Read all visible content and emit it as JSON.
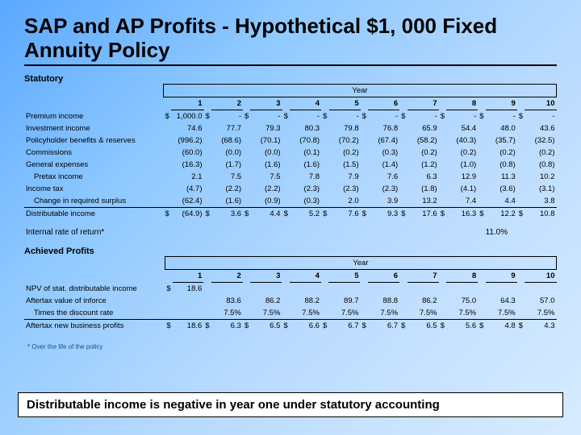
{
  "title": "SAP and AP Profits - Hypothetical $1, 000 Fixed Annuity Policy",
  "statutory": {
    "label": "Statutory",
    "year_label": "Year",
    "cols": [
      "1",
      "2",
      "3",
      "4",
      "5",
      "6",
      "7",
      "8",
      "9",
      "10"
    ],
    "rows": [
      {
        "label": "Premium income",
        "indent": false,
        "d": true,
        "v": [
          "1,000.0",
          "-",
          "-",
          "-",
          "-",
          "-",
          "-",
          "-",
          "-",
          "-"
        ]
      },
      {
        "label": "Investment income",
        "indent": false,
        "d": false,
        "v": [
          "74.6",
          "77.7",
          "79.3",
          "80.3",
          "79.8",
          "76.8",
          "65.9",
          "54.4",
          "48.0",
          "43.6"
        ]
      },
      {
        "label": "Policyholder benefits & reserves",
        "indent": false,
        "d": false,
        "v": [
          "(996.2)",
          "(68.6)",
          "(70.1)",
          "(70.8)",
          "(70.2)",
          "(67.4)",
          "(58.2)",
          "(40.3)",
          "(35.7)",
          "(32.5)"
        ]
      },
      {
        "label": "Commissions",
        "indent": false,
        "d": false,
        "v": [
          "(60.0)",
          "(0.0)",
          "(0.0)",
          "(0.1)",
          "(0.2)",
          "(0.3)",
          "(0.2)",
          "(0.2)",
          "(0.2)",
          "(0.2)"
        ]
      },
      {
        "label": "General expenses",
        "indent": false,
        "d": false,
        "v": [
          "(16.3)",
          "(1.7)",
          "(1.6)",
          "(1.6)",
          "(1.5)",
          "(1.4)",
          "(1.2)",
          "(1.0)",
          "(0.8)",
          "(0.8)"
        ]
      },
      {
        "label": "Pretax income",
        "indent": true,
        "d": false,
        "v": [
          "2.1",
          "7.5",
          "7.5",
          "7.8",
          "7.9",
          "7.6",
          "6.3",
          "12.9",
          "11.3",
          "10.2"
        ]
      },
      {
        "label": "Income tax",
        "indent": false,
        "d": false,
        "v": [
          "(4.7)",
          "(2.2)",
          "(2.2)",
          "(2.3)",
          "(2.3)",
          "(2.3)",
          "(1.8)",
          "(4.1)",
          "(3.6)",
          "(3.1)"
        ]
      },
      {
        "label": "Change in required surplus",
        "indent": true,
        "d": false,
        "v": [
          "(62.4)",
          "(1.6)",
          "(0.9)",
          "(0.3)",
          "2.0",
          "3.9",
          "13.2",
          "7.4",
          "4.4",
          "3.8"
        ]
      },
      {
        "label": "Distributable income",
        "indent": false,
        "d": true,
        "dist": true,
        "v": [
          "(64.9)",
          "3.6",
          "4.4",
          "5.2",
          "7.6",
          "9.3",
          "17.6",
          "16.3",
          "12.2",
          "10.8"
        ]
      }
    ],
    "irr_label": "Internal rate of return*",
    "irr_value": "11.0%"
  },
  "achieved": {
    "label": "Achieved Profits",
    "year_label": "Year",
    "cols": [
      "1",
      "2",
      "3",
      "4",
      "5",
      "6",
      "7",
      "8",
      "9",
      "10"
    ],
    "rows": [
      {
        "label": "NPV of stat. distributable income",
        "indent": false,
        "d": true,
        "v": [
          "18.6",
          "",
          "",
          "",
          "",
          "",
          "",
          "",
          "",
          ""
        ]
      },
      {
        "label": "Aftertax value of inforce",
        "indent": false,
        "d": false,
        "v": [
          "",
          "83.6",
          "86.2",
          "88.2",
          "89.7",
          "88.8",
          "86.2",
          "75.0",
          "64.3",
          "57.0"
        ]
      },
      {
        "label": "Times the discount rate",
        "indent": true,
        "d": false,
        "v": [
          "",
          "7.5%",
          "7.5%",
          "7.5%",
          "7.5%",
          "7.5%",
          "7.5%",
          "7.5%",
          "7.5%",
          "7.5%"
        ]
      },
      {
        "label": "Aftertax new business profits",
        "indent": false,
        "d": true,
        "dist": true,
        "v": [
          "18.6",
          "6.3",
          "6.5",
          "6.6",
          "6.7",
          "6.7",
          "6.5",
          "5.6",
          "4.8",
          "4.3"
        ]
      }
    ]
  },
  "footnote": "* Over the life of the policy",
  "callout": "Distributable income is negative in year one under statutory accounting"
}
